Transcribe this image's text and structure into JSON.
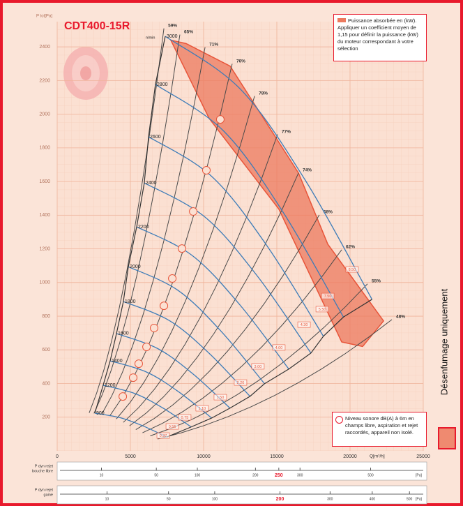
{
  "chart_data": {
    "type": "fan-curve",
    "title": "CDT400-15R",
    "x_label": "Q[m³/h]",
    "y_label": "P tot[Pa]",
    "xlim": [
      0,
      25000
    ],
    "xticks": [
      0,
      5000,
      10000,
      15000,
      20000,
      25000
    ],
    "ylim": [
      0,
      2550
    ],
    "yticks": [
      200,
      400,
      600,
      800,
      1000,
      1200,
      1400,
      1600,
      1800,
      2000,
      2200,
      2400
    ],
    "grid": true,
    "speed_unit": "n/min",
    "speed_color": "#3d7cb8",
    "speed_curves": [
      {
        "name": "3000",
        "x": [
          7380,
          12500,
          17000,
          21500
        ],
        "y": [
          2463,
          2150,
          1600,
          900
        ]
      },
      {
        "name": "2800",
        "x": [
          6710,
          11370,
          15450,
          19550
        ],
        "y": [
          2177,
          1900,
          1415,
          795
        ]
      },
      {
        "name": "2600",
        "x": [
          6240,
          10570,
          14370,
          18180
        ],
        "y": [
          1866,
          1629,
          1213,
          681
        ]
      },
      {
        "name": "2400",
        "x": [
          5950,
          10080,
          13700,
          17330
        ],
        "y": [
          1592,
          1390,
          1035,
          581
        ]
      },
      {
        "name": "2200",
        "x": [
          5430,
          9200,
          12500,
          15820
        ],
        "y": [
          1331,
          1162,
          865,
          486
        ]
      },
      {
        "name": "2000",
        "x": [
          4860,
          8230,
          11190,
          14160
        ],
        "y": [
          1094,
          955,
          711,
          399
        ]
      },
      {
        "name": "1800",
        "x": [
          4520,
          7660,
          10410,
          13170
        ],
        "y": [
          887,
          774,
          577,
          324
        ]
      },
      {
        "name": "1600",
        "x": [
          4050,
          6860,
          9330,
          11800
        ],
        "y": [
          697,
          608,
          453,
          254
        ]
      },
      {
        "name": "1400",
        "x": [
          3620,
          6130,
          8340,
          10550
        ],
        "y": [
          535,
          467,
          348,
          195
        ]
      },
      {
        "name": "1200",
        "x": [
          3140,
          5320,
          7230,
          9150
        ],
        "y": [
          390,
          340,
          254,
          142
        ]
      },
      {
        "name": "900",
        "x": [
          2570,
          4350,
          5920,
          7490
        ],
        "y": [
          224,
          196,
          146,
          82
        ]
      }
    ],
    "efficiency_color": "#4a4a4a",
    "efficiency_lines": [
      {
        "label": "59%",
        "x": 7290,
        "y": 2510
      },
      {
        "label": "65%",
        "x": 8380,
        "y": 2473
      },
      {
        "label": "71%",
        "x": 10100,
        "y": 2398
      },
      {
        "label": "76%",
        "x": 11950,
        "y": 2299
      },
      {
        "label": "78%",
        "x": 13480,
        "y": 2108
      },
      {
        "label": "77%",
        "x": 15050,
        "y": 1880
      },
      {
        "label": "74%",
        "x": 16480,
        "y": 1651
      },
      {
        "label": "68%",
        "x": 17900,
        "y": 1402
      },
      {
        "label": "62%",
        "x": 19430,
        "y": 1195
      },
      {
        "label": "55%",
        "x": 21190,
        "y": 992
      },
      {
        "label": "48%",
        "x": 22860,
        "y": 780
      }
    ],
    "power_band": {
      "color": "#ec7a5e",
      "x": [
        7760,
        8800,
        11810,
        16480,
        18480,
        22290,
        20860,
        19430,
        15140,
        10380
      ],
      "y": [
        2440,
        2420,
        2286,
        1651,
        1228,
        772,
        620,
        647,
        1436,
        1975
      ]
    },
    "power_color": "#e8553a",
    "power_labels": [
      {
        "label": "8.50",
        "x": 20140,
        "y": 1078
      },
      {
        "label": "7.50",
        "x": 18480,
        "y": 920
      },
      {
        "label": "5.50",
        "x": 18100,
        "y": 842
      },
      {
        "label": "4.30",
        "x": 16860,
        "y": 750
      },
      {
        "label": "4.00",
        "x": 15140,
        "y": 614
      },
      {
        "label": "3.00",
        "x": 13710,
        "y": 502
      },
      {
        "label": "2.20",
        "x": 12520,
        "y": 406
      },
      {
        "label": "1.50",
        "x": 11140,
        "y": 319
      },
      {
        "label": "1.10",
        "x": 9900,
        "y": 253
      },
      {
        "label": "0.75",
        "x": 8710,
        "y": 199
      },
      {
        "label": "0.55",
        "x": 7860,
        "y": 145
      },
      {
        "label": "0.37",
        "x": 7240,
        "y": 91
      }
    ],
    "noise_points": {
      "x": [
        11140,
        10190,
        9290,
        8520,
        7860,
        7290,
        6620,
        6100,
        5570,
        5190,
        4480
      ],
      "y": [
        1969,
        1667,
        1422,
        1202,
        1024,
        862,
        730,
        618,
        518,
        435,
        323
      ]
    },
    "power_legend": "Puissance absorbée en (kW). Appliquer un coefficient moyen de 1,15 pour définir la puissance (kW) du moteur correspondant à votre sélection",
    "noise_legend": "Niveau sonore dB(A) à 6m en champs libre, aspiration et rejet raccordés, appareil non isolé.",
    "side_note": "Désenfumage uniquement",
    "pdyn_scales": [
      {
        "label": [
          "P dyn rejet",
          "bouche libre"
        ],
        "plim": [
          0,
          682
        ],
        "ticks": [
          10,
          50,
          100,
          200,
          250,
          300,
          500
        ],
        "highlight": 250,
        "unit": "[Pa]"
      },
      {
        "label": [
          "P dyn rejet",
          "gainé"
        ],
        "plim": [
          0,
          540
        ],
        "ticks": [
          10,
          50,
          100,
          200,
          300,
          400,
          500
        ],
        "highlight": 200,
        "unit": "[Pa]"
      }
    ]
  }
}
